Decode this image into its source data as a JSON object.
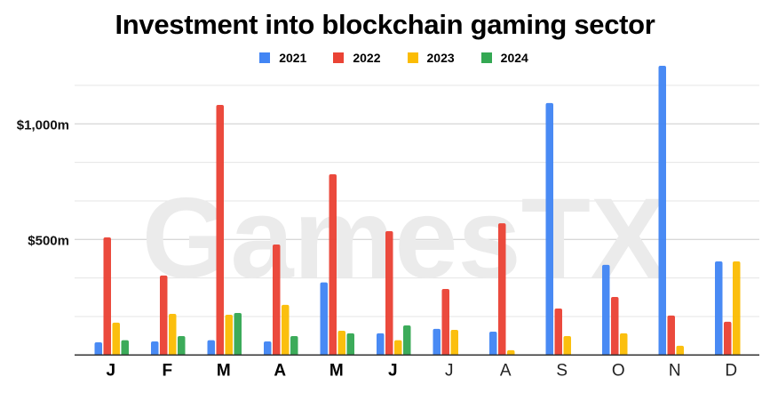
{
  "chart_data": {
    "type": "bar",
    "title": "Investment into blockchain gaming sector",
    "watermark": "GamesTX",
    "categories": [
      "J",
      "F",
      "M",
      "A",
      "M",
      "J",
      "J",
      "A",
      "S",
      "O",
      "N",
      "D"
    ],
    "category_bold": [
      true,
      true,
      true,
      true,
      true,
      true,
      false,
      false,
      false,
      false,
      false,
      false
    ],
    "ylim": [
      0,
      1300
    ],
    "yticks": [
      {
        "value": 500,
        "label": "$500m"
      },
      {
        "value": 1000,
        "label": "$1,000m"
      }
    ],
    "gridlines": [
      166.7,
      333.3,
      500,
      666.7,
      833.3,
      1000,
      1166.7
    ],
    "grid": true,
    "legend_position": "top",
    "series": [
      {
        "name": "2021",
        "color": "#4285f4",
        "values": [
          55,
          59,
          64,
          59,
          314,
          94,
          113,
          101,
          1090,
          390,
          1251,
          405
        ]
      },
      {
        "name": "2022",
        "color": "#ea4335",
        "values": [
          509,
          344,
          1082,
          478,
          782,
          536,
          286,
          570,
          201,
          251,
          171,
          144
        ]
      },
      {
        "name": "2023",
        "color": "#fbbc04",
        "values": [
          140,
          178,
          174,
          217,
          105,
          64,
          109,
          21,
          82,
          94,
          40,
          405
        ]
      },
      {
        "name": "2024",
        "color": "#34a853",
        "values": [
          64,
          82,
          182,
          82,
          94,
          128,
          null,
          null,
          null,
          null,
          null,
          null
        ]
      }
    ]
  }
}
